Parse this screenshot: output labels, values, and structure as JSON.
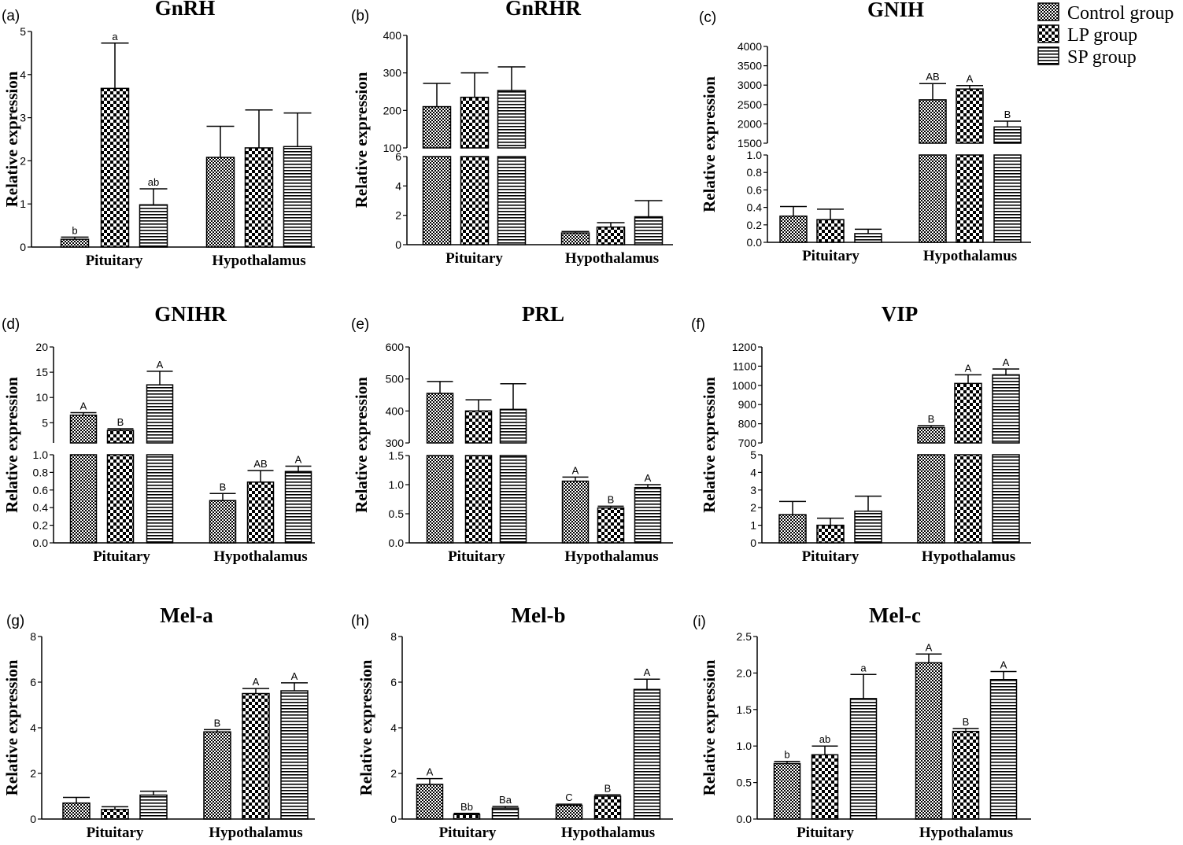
{
  "legend": [
    {
      "label": "Control group",
      "pattern": "control"
    },
    {
      "label": "LP group",
      "pattern": "lp"
    },
    {
      "label": "SP group",
      "pattern": "sp"
    }
  ],
  "chart_data": [
    {
      "type": "bar",
      "panel": "(a)",
      "title": "GnRH",
      "ylabel": "Relative expression",
      "categories": [
        "Pituitary",
        "Hypothalamus"
      ],
      "ylim": [
        0,
        5
      ],
      "yticks": [
        0,
        1,
        2,
        3,
        4,
        5
      ],
      "series": [
        {
          "name": "Control group",
          "values": [
            0.18,
            2.08
          ],
          "errors": [
            0.05,
            0.72
          ],
          "sig": [
            "b",
            ""
          ]
        },
        {
          "name": "LP group",
          "values": [
            3.68,
            2.3
          ],
          "errors": [
            1.05,
            0.88
          ],
          "sig": [
            "a",
            ""
          ]
        },
        {
          "name": "SP group",
          "values": [
            0.98,
            2.33
          ],
          "errors": [
            0.37,
            0.78
          ],
          "sig": [
            "ab",
            ""
          ]
        }
      ]
    },
    {
      "type": "bar",
      "panel": "(b)",
      "title": "GnRHR",
      "ylabel": "Relative expression",
      "categories": [
        "Pituitary",
        "Hypothalamus"
      ],
      "broken_axis": true,
      "lower_ylim": [
        0,
        6
      ],
      "lower_yticks": [
        0,
        2,
        4,
        6
      ],
      "upper_ylim": [
        100,
        400
      ],
      "upper_yticks": [
        100,
        200,
        300,
        400
      ],
      "series": [
        {
          "name": "Control group",
          "values": [
            210,
            0.8
          ],
          "errors": [
            62,
            0.1
          ],
          "sig": [
            "",
            ""
          ]
        },
        {
          "name": "LP group",
          "values": [
            235,
            1.2
          ],
          "errors": [
            65,
            0.3
          ],
          "sig": [
            "",
            ""
          ]
        },
        {
          "name": "SP group",
          "values": [
            253,
            1.9
          ],
          "errors": [
            63,
            1.1
          ],
          "sig": [
            "",
            ""
          ]
        }
      ]
    },
    {
      "type": "bar",
      "panel": "(c)",
      "title": "GNIH",
      "ylabel": "Relative expression",
      "categories": [
        "Pituitary",
        "Hypothalamus"
      ],
      "broken_axis": true,
      "lower_ylim": [
        0,
        1
      ],
      "lower_yticks": [
        0.0,
        0.2,
        0.4,
        0.6,
        0.8,
        1.0
      ],
      "upper_ylim": [
        1500,
        4000
      ],
      "upper_yticks": [
        1500,
        2000,
        2500,
        3000,
        3500,
        4000
      ],
      "series": [
        {
          "name": "Control group",
          "values": [
            0.3,
            2620
          ],
          "errors": [
            0.11,
            420
          ],
          "sig": [
            "",
            "AB"
          ]
        },
        {
          "name": "LP group",
          "values": [
            0.26,
            2900
          ],
          "errors": [
            0.12,
            90
          ],
          "sig": [
            "",
            "A"
          ]
        },
        {
          "name": "SP group",
          "values": [
            0.1,
            1920
          ],
          "errors": [
            0.05,
            150
          ],
          "sig": [
            "",
            "B"
          ]
        }
      ]
    },
    {
      "type": "bar",
      "panel": "(d)",
      "title": "GNIHR",
      "ylabel": "Relative expression",
      "categories": [
        "Pituitary",
        "Hypothalamus"
      ],
      "broken_axis": true,
      "lower_ylim": [
        0,
        1
      ],
      "lower_yticks": [
        0.0,
        0.2,
        0.4,
        0.6,
        0.8,
        1.0
      ],
      "upper_ylim": [
        1,
        20
      ],
      "upper_yticks": [
        5,
        10,
        15,
        20
      ],
      "series": [
        {
          "name": "Control group",
          "values": [
            6.5,
            0.48
          ],
          "errors": [
            0.5,
            0.08
          ],
          "sig": [
            "A",
            "B"
          ]
        },
        {
          "name": "LP group",
          "values": [
            3.5,
            0.69
          ],
          "errors": [
            0.3,
            0.13
          ],
          "sig": [
            "B",
            "AB"
          ]
        },
        {
          "name": "SP group",
          "values": [
            12.5,
            0.81
          ],
          "errors": [
            2.7,
            0.06
          ],
          "sig": [
            "A",
            "A"
          ]
        }
      ]
    },
    {
      "type": "bar",
      "panel": "(e)",
      "title": "PRL",
      "ylabel": "Relative expression",
      "categories": [
        "Pituitary",
        "Hypothalamus"
      ],
      "broken_axis": true,
      "lower_ylim": [
        0,
        1.5
      ],
      "lower_yticks": [
        0.0,
        0.5,
        1.0,
        1.5
      ],
      "upper_ylim": [
        300,
        600
      ],
      "upper_yticks": [
        300,
        400,
        500,
        600
      ],
      "series": [
        {
          "name": "Control group",
          "values": [
            455,
            1.06
          ],
          "errors": [
            37,
            0.07
          ],
          "sig": [
            "",
            "A"
          ]
        },
        {
          "name": "LP group",
          "values": [
            400,
            0.6
          ],
          "errors": [
            35,
            0.03
          ],
          "sig": [
            "",
            "B"
          ]
        },
        {
          "name": "SP group",
          "values": [
            405,
            0.95
          ],
          "errors": [
            80,
            0.05
          ],
          "sig": [
            "",
            "A"
          ]
        }
      ]
    },
    {
      "type": "bar",
      "panel": "(f)",
      "title": "VIP",
      "ylabel": "Relative expression",
      "categories": [
        "Pituitary",
        "Hypothalamus"
      ],
      "broken_axis": true,
      "lower_ylim": [
        0,
        5
      ],
      "lower_yticks": [
        0,
        1,
        2,
        3,
        4,
        5
      ],
      "upper_ylim": [
        700,
        1200
      ],
      "upper_yticks": [
        700,
        800,
        900,
        1000,
        1100,
        1200
      ],
      "series": [
        {
          "name": "Control group",
          "values": [
            1.6,
            780
          ],
          "errors": [
            0.75,
            10
          ],
          "sig": [
            "",
            "B"
          ]
        },
        {
          "name": "LP group",
          "values": [
            1.0,
            1010
          ],
          "errors": [
            0.4,
            45
          ],
          "sig": [
            "",
            "A"
          ]
        },
        {
          "name": "SP group",
          "values": [
            1.8,
            1055
          ],
          "errors": [
            0.85,
            30
          ],
          "sig": [
            "",
            "A"
          ]
        }
      ]
    },
    {
      "type": "bar",
      "panel": "(g)",
      "title": "Mel-a",
      "ylabel": "Relative expression",
      "categories": [
        "Pituitary",
        "Hypothalamus"
      ],
      "ylim": [
        0,
        8
      ],
      "yticks": [
        0,
        2,
        4,
        6,
        8
      ],
      "series": [
        {
          "name": "Control group",
          "values": [
            0.7,
            3.82
          ],
          "errors": [
            0.25,
            0.1
          ],
          "sig": [
            "",
            "B"
          ]
        },
        {
          "name": "LP group",
          "values": [
            0.42,
            5.5
          ],
          "errors": [
            0.12,
            0.22
          ],
          "sig": [
            "",
            "A"
          ]
        },
        {
          "name": "SP group",
          "values": [
            1.05,
            5.62
          ],
          "errors": [
            0.17,
            0.35
          ],
          "sig": [
            "",
            "A"
          ]
        }
      ]
    },
    {
      "type": "bar",
      "panel": "(h)",
      "title": "Mel-b",
      "ylabel": "Relative expression",
      "categories": [
        "Pituitary",
        "Hypothalamus"
      ],
      "ylim": [
        0,
        8
      ],
      "yticks": [
        0,
        2,
        4,
        6,
        8
      ],
      "series": [
        {
          "name": "Control group",
          "values": [
            1.52,
            0.6
          ],
          "errors": [
            0.25,
            0.05
          ],
          "sig": [
            "A",
            "C"
          ]
        },
        {
          "name": "LP group",
          "values": [
            0.2,
            1.0
          ],
          "errors": [
            0.05,
            0.06
          ],
          "sig": [
            "Bb",
            "B"
          ]
        },
        {
          "name": "SP group",
          "values": [
            0.48,
            5.68
          ],
          "errors": [
            0.07,
            0.45
          ],
          "sig": [
            "Ba",
            "A"
          ]
        }
      ]
    },
    {
      "type": "bar",
      "panel": "(i)",
      "title": "Mel-c",
      "ylabel": "Relative expression",
      "categories": [
        "Pituitary",
        "Hypothalamus"
      ],
      "ylim": [
        0,
        2.5
      ],
      "yticks": [
        0.0,
        0.5,
        1.0,
        1.5,
        2.0,
        2.5
      ],
      "series": [
        {
          "name": "Control group",
          "values": [
            0.76,
            2.14
          ],
          "errors": [
            0.03,
            0.12
          ],
          "sig": [
            "b",
            "A"
          ]
        },
        {
          "name": "LP group",
          "values": [
            0.88,
            1.2
          ],
          "errors": [
            0.12,
            0.04
          ],
          "sig": [
            "ab",
            "B"
          ]
        },
        {
          "name": "SP group",
          "values": [
            1.65,
            1.91
          ],
          "errors": [
            0.33,
            0.11
          ],
          "sig": [
            "a",
            "A"
          ]
        }
      ]
    }
  ]
}
